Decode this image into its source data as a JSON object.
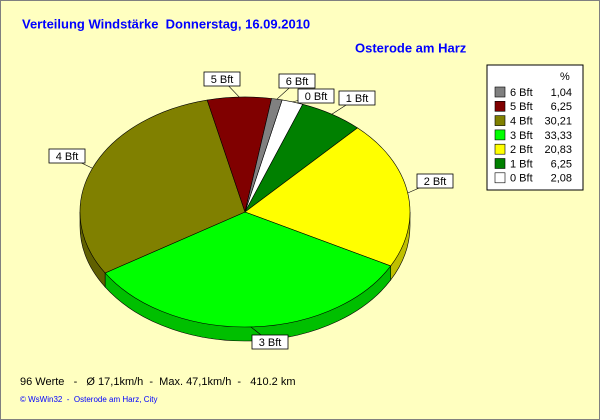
{
  "chart_data": {
    "type": "pie",
    "title": "Verteilung Windstärke  Donnerstag, 16.09.2010",
    "subtitle": "Osterode am Harz",
    "legend_header": "%",
    "categories": [
      "6 Bft",
      "5 Bft",
      "4 Bft",
      "3 Bft",
      "2 Bft",
      "1 Bft",
      "0 Bft"
    ],
    "values": [
      1.04,
      6.25,
      30.21,
      33.33,
      20.83,
      6.25,
      2.08
    ],
    "value_labels": [
      "1,04",
      "6,25",
      "30,21",
      "33,33",
      "20,83",
      "6,25",
      "2,08"
    ],
    "colors": [
      "#808080",
      "#800000",
      "#808000",
      "#00ff00",
      "#ffff00",
      "#008000",
      "#ffffff"
    ],
    "legend": "top-right",
    "footer": "96 Werte   -   Ø 17,1km/h  -  Max. 47,1km/h  -   410.2 km",
    "credit": "© WsWin32  -  Osterode am Harz, City"
  }
}
